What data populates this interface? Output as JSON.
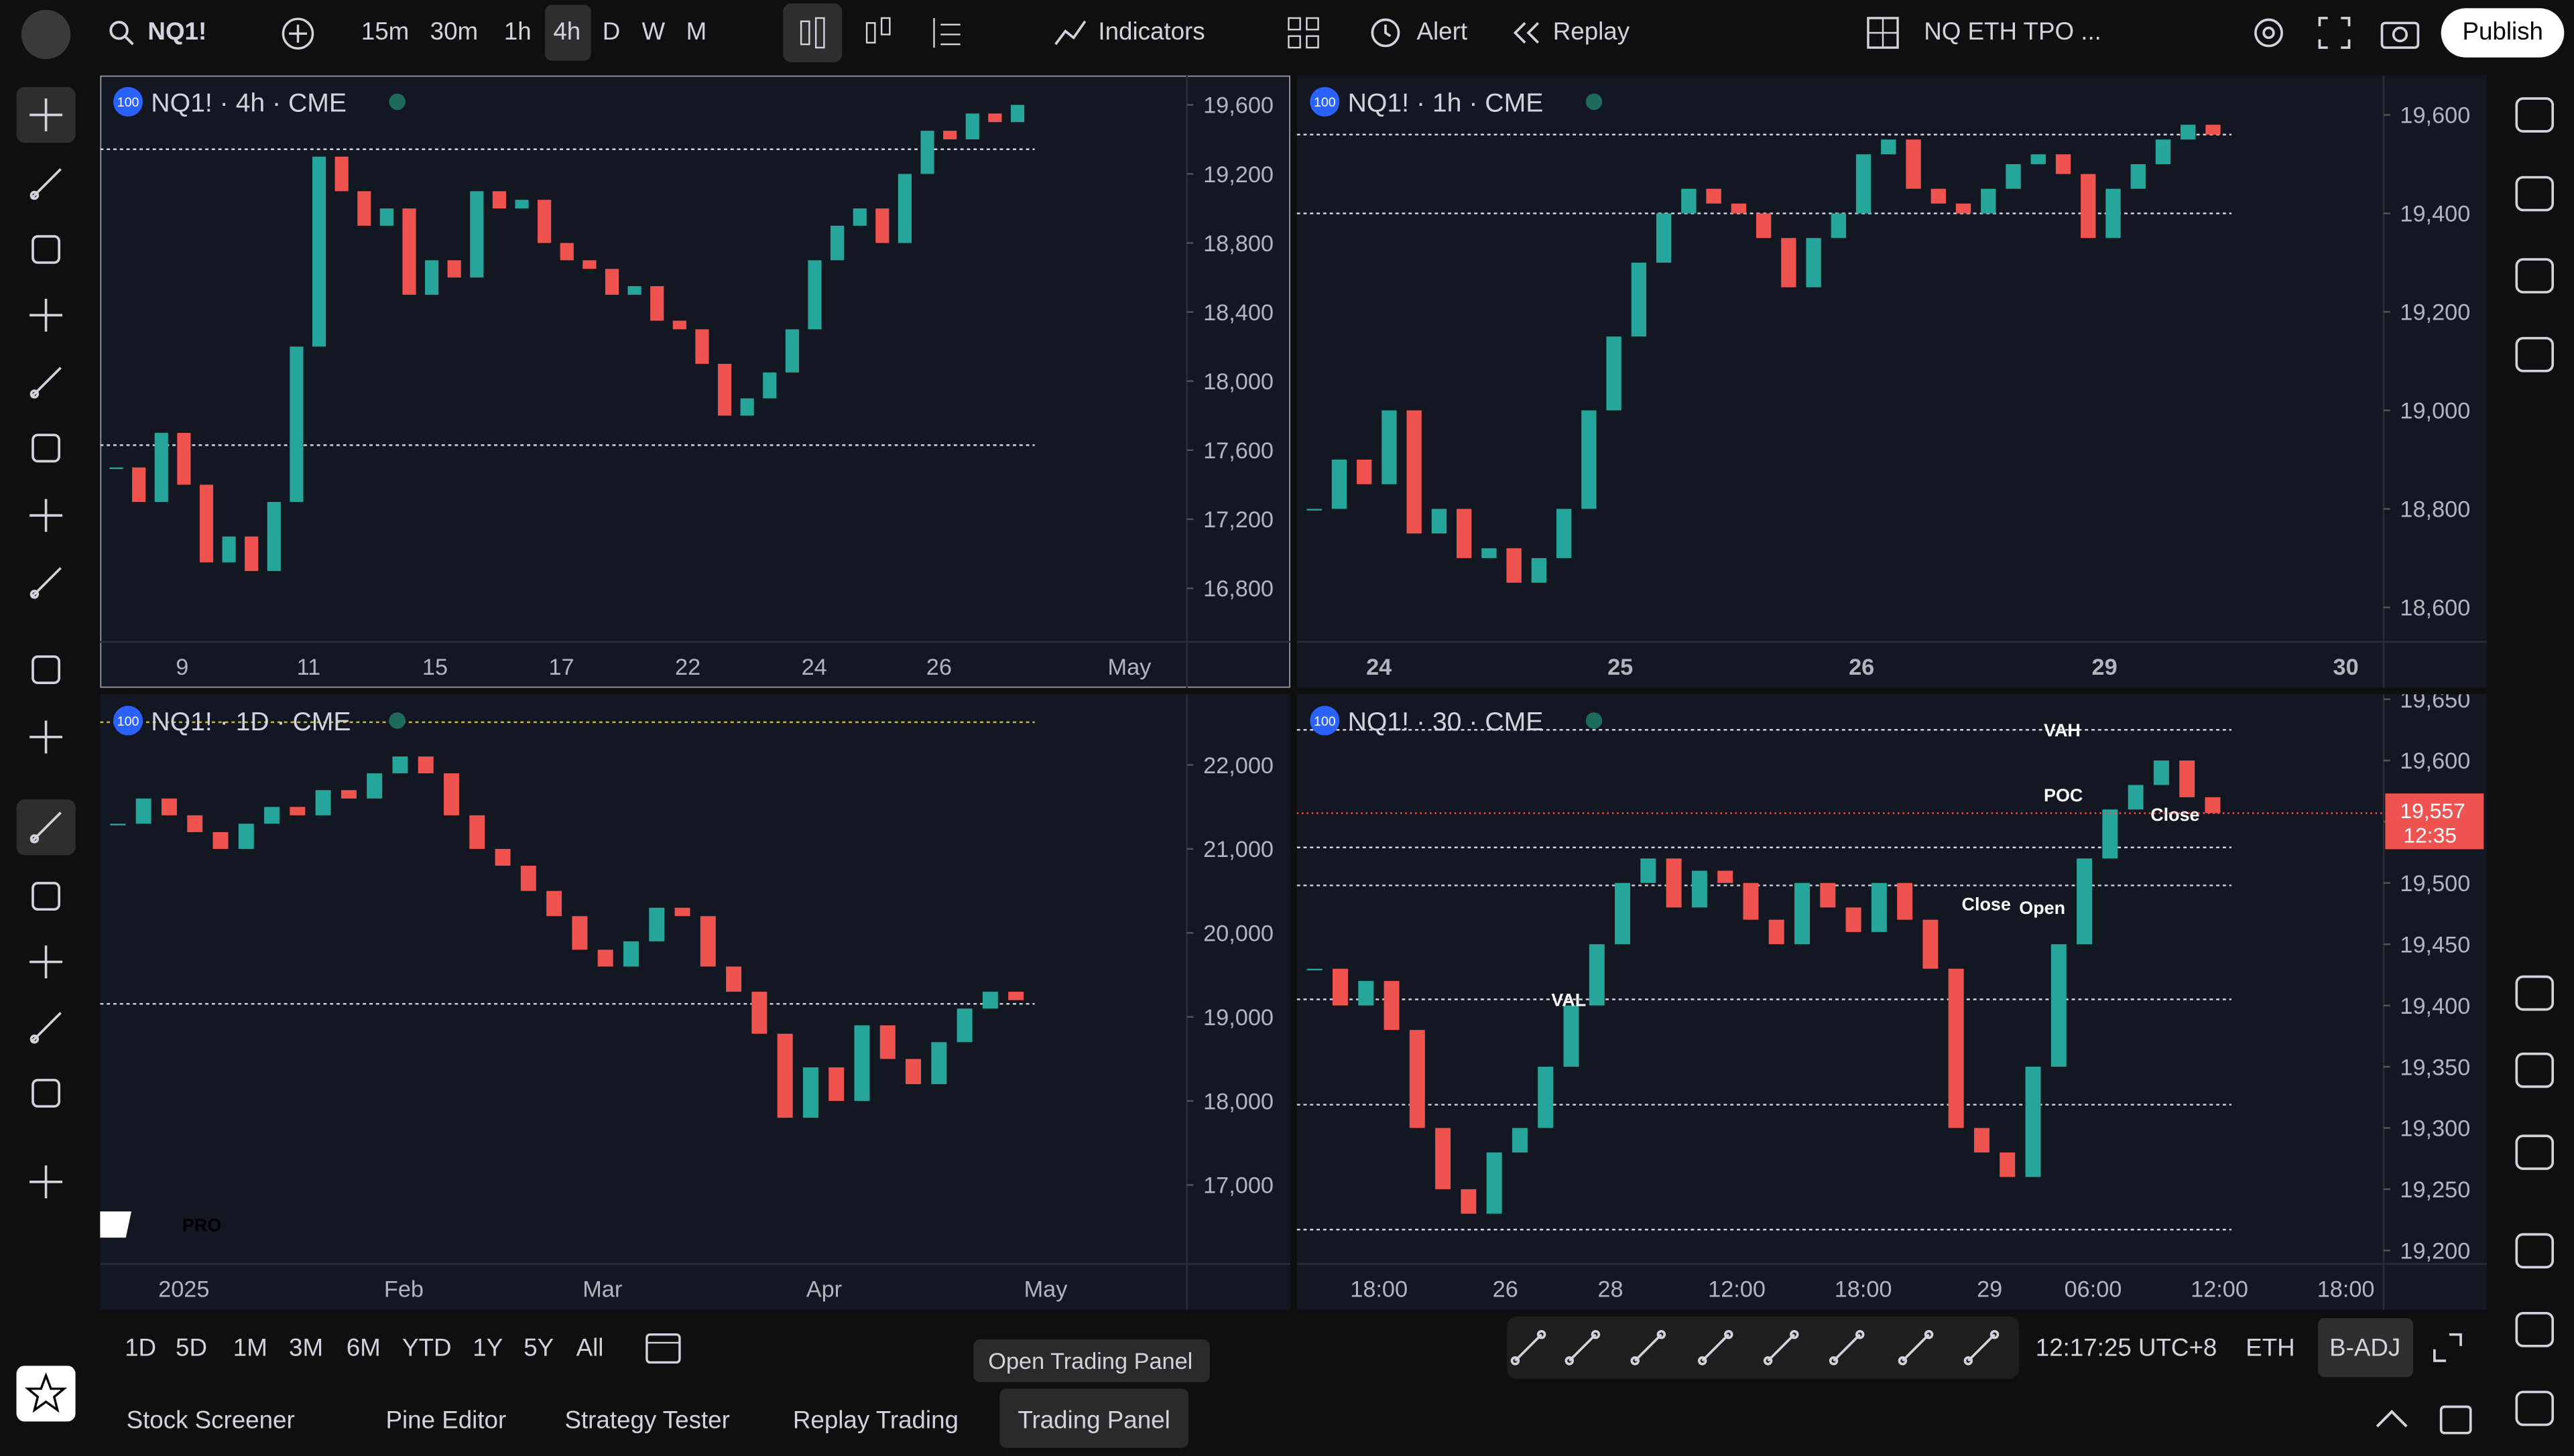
{
  "toolbar": {
    "symbol": "NQ1!",
    "intervals": [
      "15m",
      "30m",
      "1h",
      "4h",
      "D",
      "W",
      "M"
    ],
    "active_interval": "4h",
    "indicators": "Indicators",
    "alert": "Alert",
    "replay": "Replay",
    "layout_name": "NQ ETH TPO ...",
    "publish": "Publish"
  },
  "panes": [
    {
      "badge": "100",
      "title": "NQ1! · 4h · CME",
      "ylim": [
        16490,
        19770
      ],
      "yticks": [
        {
          "value": 19600,
          "label": "19,600"
        },
        {
          "value": 19200,
          "label": "19,200"
        },
        {
          "value": 18800,
          "label": "18,800"
        },
        {
          "value": 18400,
          "label": "18,400"
        },
        {
          "value": 18000,
          "label": "18,000"
        },
        {
          "value": 17600,
          "label": "17,600"
        },
        {
          "value": 17200,
          "label": "17,200"
        },
        {
          "value": 16800,
          "label": "16,800"
        }
      ],
      "xlabels": [
        "9",
        "11",
        "15",
        "17",
        "22",
        "24",
        "26",
        "May"
      ],
      "levels": [
        19343,
        17629
      ],
      "closes": [
        17500,
        17300,
        17700,
        17400,
        16950,
        17100,
        16900,
        17300,
        18200,
        19300,
        19100,
        18900,
        19000,
        18500,
        18700,
        18600,
        19100,
        19000,
        19050,
        18800,
        18700,
        18650,
        18500,
        18550,
        18350,
        18300,
        18100,
        17800,
        17900,
        18050,
        18300,
        18700,
        18900,
        19000,
        18800,
        19200,
        19450,
        19400,
        19550,
        19500,
        19600
      ]
    },
    {
      "badge": "100",
      "title": "NQ1! · 1h · CME",
      "ylim": [
        18530,
        19680
      ],
      "yticks": [
        {
          "value": 19600,
          "label": "19,600"
        },
        {
          "value": 19400,
          "label": "19,400"
        },
        {
          "value": 19200,
          "label": "19,200"
        },
        {
          "value": 19000,
          "label": "19,000"
        },
        {
          "value": 18800,
          "label": "18,800"
        },
        {
          "value": 18600,
          "label": "18,600"
        }
      ],
      "xlabels": [
        "24",
        "25",
        "26",
        "29",
        "30"
      ],
      "levels": [
        19560,
        19400
      ],
      "closes": [
        18800,
        18900,
        18850,
        19000,
        18750,
        18800,
        18700,
        18720,
        18650,
        18700,
        18800,
        19000,
        19150,
        19300,
        19400,
        19450,
        19420,
        19400,
        19350,
        19250,
        19350,
        19400,
        19520,
        19550,
        19450,
        19420,
        19400,
        19450,
        19500,
        19520,
        19480,
        19350,
        19450,
        19500,
        19550,
        19580,
        19560
      ]
    },
    {
      "badge": "100",
      "title": "NQ1! · 1D · CME",
      "logo_text": "PRO",
      "ylim": [
        16060,
        22840
      ],
      "yticks": [
        {
          "value": 22000,
          "label": "22,000"
        },
        {
          "value": 21000,
          "label": "21,000"
        },
        {
          "value": 20000,
          "label": "20,000"
        },
        {
          "value": 19000,
          "label": "19,000"
        },
        {
          "value": 18000,
          "label": "18,000"
        },
        {
          "value": 17000,
          "label": "17,000"
        }
      ],
      "xlabels": [
        "2025",
        "Feb",
        "Mar",
        "Apr",
        "May"
      ],
      "levels": [
        22508,
        19156
      ],
      "closes": [
        21300,
        21600,
        21400,
        21200,
        21000,
        21300,
        21500,
        21400,
        21700,
        21600,
        21900,
        22100,
        21900,
        21400,
        21000,
        20800,
        20500,
        20200,
        19800,
        19600,
        19900,
        20300,
        20200,
        19600,
        19300,
        18800,
        17800,
        18400,
        18000,
        18900,
        18500,
        18200,
        18700,
        19100,
        19300,
        19200
      ]
    },
    {
      "badge": "100",
      "title": "NQ1! · 30 · CME",
      "ylim": [
        19189,
        19654
      ],
      "yticks": [
        {
          "value": 19650,
          "label": "19,650"
        },
        {
          "value": 19600,
          "label": "19,600"
        },
        {
          "value": 19550,
          "label": "19,550"
        },
        {
          "value": 19500,
          "label": "19,500"
        },
        {
          "value": 19450,
          "label": "19,450"
        },
        {
          "value": 19400,
          "label": "19,400"
        },
        {
          "value": 19350,
          "label": "19,350"
        },
        {
          "value": 19300,
          "label": "19,300"
        },
        {
          "value": 19250,
          "label": "19,250"
        },
        {
          "value": 19200,
          "label": "19,200"
        }
      ],
      "xlabels": [
        "18:00",
        "26",
        "28",
        "12:00",
        "18:00",
        "29",
        "06:00",
        "12:00",
        "18:00"
      ],
      "levels": [
        19625,
        19529,
        19498,
        19405,
        19319,
        19217
      ],
      "profile_labels": [
        {
          "text": "VAH",
          "price": 19625
        },
        {
          "text": "POC",
          "price": 19572
        },
        {
          "text": "VAL",
          "price": 19405
        },
        {
          "text": "Open",
          "price": 19480
        },
        {
          "text": "Close",
          "price": 19483
        },
        {
          "text": "Close",
          "price": 19556
        }
      ],
      "price_tag": {
        "value": 19557,
        "label": "19,557",
        "countdown": "12:35"
      },
      "closes": [
        19430,
        19400,
        19420,
        19380,
        19300,
        19250,
        19230,
        19280,
        19300,
        19350,
        19400,
        19450,
        19500,
        19520,
        19480,
        19510,
        19500,
        19470,
        19450,
        19500,
        19480,
        19460,
        19500,
        19470,
        19430,
        19300,
        19280,
        19260,
        19350,
        19450,
        19520,
        19560,
        19580,
        19600,
        19570,
        19557
      ]
    }
  ],
  "bottom_bar": {
    "ranges": [
      "1D",
      "5D",
      "1M",
      "3M",
      "6M",
      "YTD",
      "1Y",
      "5Y",
      "All"
    ],
    "tooltip": "Open Trading Panel",
    "clock": "12:17:25 UTC+8",
    "session": "ETH",
    "adjustment": "B-ADJ"
  },
  "tabs": {
    "items": [
      "Stock Screener",
      "Pine Editor",
      "Strategy Tester",
      "Replay Trading",
      "Trading Panel"
    ],
    "active": "Trading Panel"
  }
}
